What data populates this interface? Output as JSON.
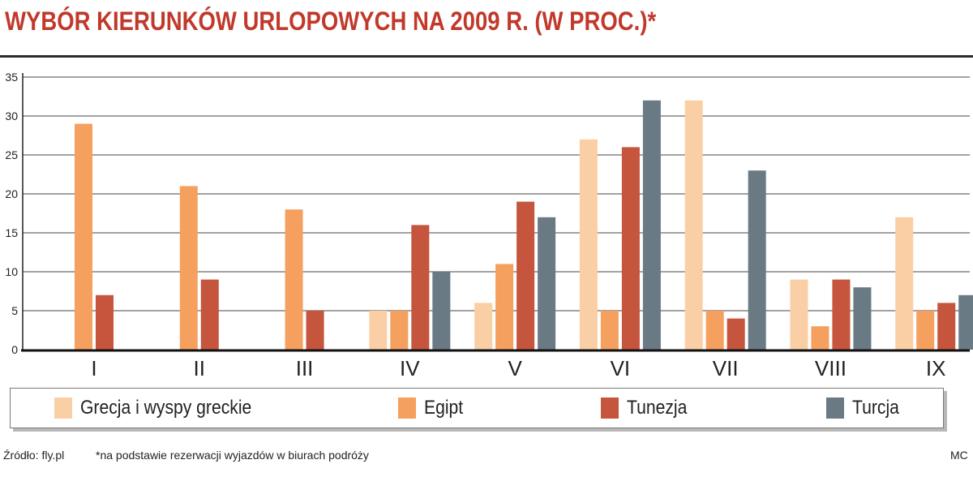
{
  "title": "WYBÓR KIERUNKÓW URLOPOWYCH NA 2009 R. (W PROC.)*",
  "colors": {
    "title": "#c1392b",
    "series": [
      "#fbcfa5",
      "#f5a05f",
      "#c5553c",
      "#6a7a85"
    ],
    "grid": "#444444"
  },
  "legend": [
    "Grecja i wyspy greckie",
    "Egipt",
    "Tunezja",
    "Turcja"
  ],
  "footer": {
    "source": "Źródło: fly.pl",
    "note": "*na podstawie rezerwacji wyjazdów w biurach podróży",
    "author": "MC"
  },
  "chart_data": {
    "type": "bar",
    "title": "WYBÓR KIERUNKÓW URLOPOWYCH NA 2009 R. (W PROC.)*",
    "xlabel": "",
    "ylabel": "",
    "ylim": [
      0,
      35
    ],
    "yticks": [
      0,
      5,
      10,
      15,
      20,
      25,
      30,
      35
    ],
    "grid": true,
    "legend_position": "bottom",
    "categories": [
      "I",
      "II",
      "III",
      "IV",
      "V",
      "VI",
      "VII",
      "VIII",
      "IX"
    ],
    "series": [
      {
        "name": "Grecja i wyspy greckie",
        "values": [
          null,
          null,
          null,
          5,
          6,
          27,
          32,
          9,
          17
        ]
      },
      {
        "name": "Egipt",
        "values": [
          29,
          21,
          18,
          5,
          11,
          5,
          5,
          3,
          5
        ]
      },
      {
        "name": "Tunezja",
        "values": [
          7,
          9,
          5,
          16,
          19,
          26,
          4,
          9,
          6
        ]
      },
      {
        "name": "Turcja",
        "values": [
          null,
          null,
          null,
          10,
          17,
          32,
          23,
          8,
          7
        ]
      }
    ]
  }
}
